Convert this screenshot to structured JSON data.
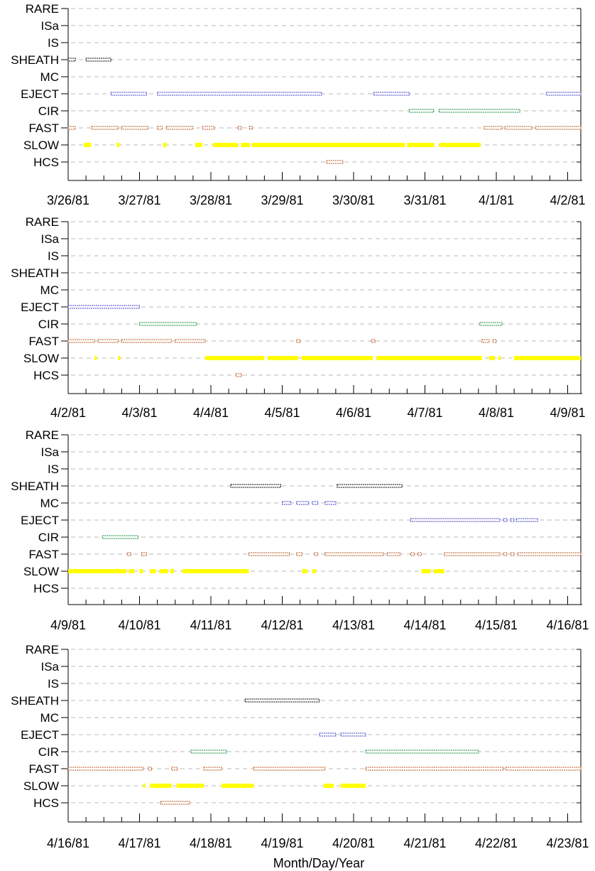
{
  "chart_data": {
    "type": "timeline",
    "xlabel": "Month/Day/Year",
    "categories": [
      "RARE",
      "ISa",
      "IS",
      "SHEATH",
      "MC",
      "EJECT",
      "CIR",
      "FAST",
      "SLOW",
      "HCS"
    ],
    "colors": {
      "SHEATH": "#000000",
      "MC": "#3b3bc8",
      "EJECT": "#3b3bc8",
      "CIR": "#128a3a",
      "FAST": "#b8551e",
      "SLOW": "#ffff00",
      "HCS": "#b8551e",
      "grid": "#b8b8b8"
    },
    "panels": [
      {
        "x_ticks": [
          "3/26/81",
          "3/27/81",
          "3/28/81",
          "3/29/81",
          "3/30/81",
          "3/31/81",
          "4/1/81",
          "4/2/81"
        ],
        "xlim": [
          0,
          7
        ],
        "series": [
          {
            "category": "SHEATH",
            "intervals": [
              [
                0.0,
                0.1
              ],
              [
                0.25,
                0.6
              ]
            ]
          },
          {
            "category": "EJECT",
            "intervals": [
              [
                0.6,
                1.1
              ],
              [
                1.25,
                3.55
              ],
              [
                4.28,
                4.78
              ],
              [
                6.7,
                7.2
              ]
            ]
          },
          {
            "category": "CIR",
            "intervals": [
              [
                4.78,
                5.12
              ],
              [
                5.2,
                6.33
              ]
            ]
          },
          {
            "category": "FAST",
            "intervals": [
              [
                0.0,
                0.1
              ],
              [
                0.33,
                0.7
              ],
              [
                0.75,
                1.12
              ],
              [
                1.25,
                1.32
              ],
              [
                1.38,
                1.75
              ],
              [
                1.88,
                2.05
              ],
              [
                2.38,
                2.43
              ],
              [
                2.54,
                2.58
              ],
              [
                5.83,
                6.08
              ],
              [
                6.12,
                6.5
              ],
              [
                6.55,
                7.2
              ]
            ]
          },
          {
            "category": "SLOW",
            "intervals": [
              [
                0.22,
                0.32
              ],
              [
                0.68,
                0.72
              ],
              [
                1.33,
                1.38
              ],
              [
                1.78,
                1.88
              ],
              [
                2.03,
                2.38
              ],
              [
                2.42,
                2.55
              ],
              [
                2.58,
                4.72
              ],
              [
                4.75,
                5.13
              ],
              [
                5.2,
                5.78
              ]
            ]
          },
          {
            "category": "HCS",
            "intervals": [
              [
                3.62,
                3.85
              ]
            ]
          }
        ]
      },
      {
        "x_ticks": [
          "4/2/81",
          "4/3/81",
          "4/4/81",
          "4/5/81",
          "4/6/81",
          "4/7/81",
          "4/8/81",
          "4/9/81"
        ],
        "xlim": [
          0,
          7
        ],
        "series": [
          {
            "category": "EJECT",
            "intervals": [
              [
                0.0,
                1.0
              ]
            ]
          },
          {
            "category": "CIR",
            "intervals": [
              [
                1.0,
                1.8
              ],
              [
                5.77,
                6.08
              ]
            ]
          },
          {
            "category": "FAST",
            "intervals": [
              [
                0.0,
                0.37
              ],
              [
                0.42,
                0.7
              ],
              [
                0.75,
                1.45
              ],
              [
                1.5,
                1.92
              ],
              [
                3.2,
                3.25
              ],
              [
                4.25,
                4.3
              ],
              [
                5.8,
                5.9
              ],
              [
                5.95,
                6.0
              ]
            ]
          },
          {
            "category": "SLOW",
            "intervals": [
              [
                0.37,
                0.4
              ],
              [
                0.7,
                0.73
              ],
              [
                1.92,
                2.75
              ],
              [
                2.8,
                3.22
              ],
              [
                3.27,
                4.27
              ],
              [
                4.32,
                5.8
              ],
              [
                5.9,
                5.98
              ],
              [
                6.03,
                6.05
              ],
              [
                6.25,
                7.2
              ]
            ]
          },
          {
            "category": "HCS",
            "intervals": [
              [
                2.35,
                2.43
              ]
            ]
          }
        ]
      },
      {
        "x_ticks": [
          "4/9/81",
          "4/10/81",
          "4/11/81",
          "4/12/81",
          "4/13/81",
          "4/14/81",
          "4/15/81",
          "4/16/81"
        ],
        "xlim": [
          0,
          7
        ],
        "series": [
          {
            "category": "SHEATH",
            "intervals": [
              [
                2.28,
                2.98
              ],
              [
                3.77,
                4.68
              ]
            ]
          },
          {
            "category": "MC",
            "intervals": [
              [
                3.0,
                3.12
              ],
              [
                3.2,
                3.37
              ],
              [
                3.42,
                3.5
              ],
              [
                3.6,
                3.75
              ]
            ]
          },
          {
            "category": "EJECT",
            "intervals": [
              [
                4.8,
                6.05
              ],
              [
                6.1,
                6.15
              ],
              [
                6.2,
                6.25
              ],
              [
                6.28,
                6.58
              ]
            ]
          },
          {
            "category": "CIR",
            "intervals": [
              [
                0.48,
                0.98
              ]
            ]
          },
          {
            "category": "FAST",
            "intervals": [
              [
                0.83,
                0.88
              ],
              [
                1.03,
                1.1
              ],
              [
                2.53,
                3.1
              ],
              [
                3.2,
                3.28
              ],
              [
                3.45,
                3.5
              ],
              [
                3.6,
                4.42
              ],
              [
                4.47,
                4.65
              ],
              [
                4.8,
                4.85
              ],
              [
                4.9,
                4.95
              ],
              [
                5.27,
                6.05
              ],
              [
                6.1,
                6.15
              ],
              [
                6.2,
                6.25
              ],
              [
                6.3,
                7.2
              ]
            ]
          },
          {
            "category": "SLOW",
            "intervals": [
              [
                0.0,
                0.82
              ],
              [
                0.85,
                0.93
              ],
              [
                1.0,
                1.05
              ],
              [
                1.15,
                1.23
              ],
              [
                1.28,
                1.4
              ],
              [
                1.43,
                1.48
              ],
              [
                1.6,
                2.53
              ],
              [
                3.28,
                3.35
              ],
              [
                3.42,
                3.47
              ],
              [
                4.95,
                5.08
              ],
              [
                5.12,
                5.27
              ]
            ]
          }
        ]
      },
      {
        "x_ticks": [
          "4/16/81",
          "4/17/81",
          "4/18/81",
          "4/19/81",
          "4/20/81",
          "4/21/81",
          "4/22/81",
          "4/23/81"
        ],
        "xlim": [
          0,
          7
        ],
        "series": [
          {
            "category": "SHEATH",
            "intervals": [
              [
                2.48,
                3.52
              ]
            ]
          },
          {
            "category": "EJECT",
            "intervals": [
              [
                3.52,
                3.75
              ],
              [
                3.82,
                4.17
              ]
            ]
          },
          {
            "category": "CIR",
            "intervals": [
              [
                1.72,
                2.22
              ],
              [
                4.17,
                5.75
              ]
            ]
          },
          {
            "category": "FAST",
            "intervals": [
              [
                0.0,
                1.05
              ],
              [
                1.12,
                1.17
              ],
              [
                1.45,
                1.53
              ],
              [
                1.9,
                2.15
              ],
              [
                2.6,
                3.6
              ],
              [
                4.17,
                6.1
              ],
              [
                6.13,
                7.2
              ]
            ]
          },
          {
            "category": "SLOW",
            "intervals": [
              [
                1.05,
                1.08
              ],
              [
                1.15,
                1.45
              ],
              [
                1.52,
                1.9
              ],
              [
                2.15,
                2.6
              ],
              [
                3.58,
                3.72
              ],
              [
                3.82,
                4.17
              ]
            ]
          },
          {
            "category": "HCS",
            "intervals": [
              [
                1.3,
                1.7
              ]
            ]
          }
        ]
      }
    ]
  }
}
